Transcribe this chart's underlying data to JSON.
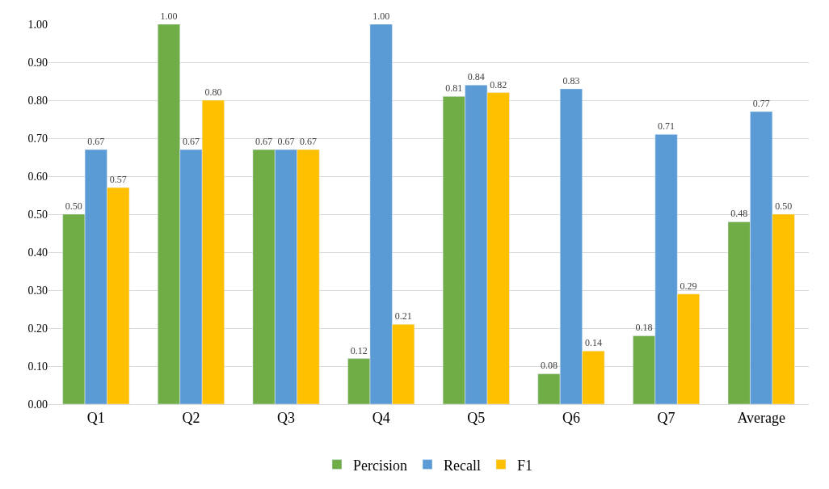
{
  "chart_data": {
    "type": "bar",
    "categories": [
      "Q1",
      "Q2",
      "Q3",
      "Q4",
      "Q5",
      "Q6",
      "Q7",
      "Average"
    ],
    "series": [
      {
        "name": "Percision",
        "color": "#70ad47",
        "values": [
          0.5,
          1.0,
          0.67,
          0.12,
          0.81,
          0.08,
          0.18,
          0.48
        ],
        "value_labels": [
          "0.50",
          "1.00",
          "0.67",
          "0.12",
          "0.81",
          "0.08",
          "0.18",
          "0.48"
        ]
      },
      {
        "name": "Recall",
        "color": "#5b9bd5",
        "values": [
          0.67,
          0.67,
          0.67,
          1.0,
          0.84,
          0.83,
          0.71,
          0.77
        ],
        "value_labels": [
          "0.67",
          "0.67",
          "0.67",
          "1.00",
          "0.84",
          "0.83",
          "0.71",
          "0.77"
        ]
      },
      {
        "name": "F1",
        "color": "#ffc000",
        "values": [
          0.57,
          0.8,
          0.67,
          0.21,
          0.82,
          0.14,
          0.29,
          0.5
        ],
        "value_labels": [
          "0.57",
          "0.80",
          "0.67",
          "0.21",
          "0.82",
          "0.14",
          "0.29",
          "0.50"
        ]
      }
    ],
    "ylim": [
      0,
      1.0
    ],
    "yticks": [
      {
        "value": 0,
        "label": "0.00"
      },
      {
        "value": 0.1,
        "label": "0.10"
      },
      {
        "value": 0.2,
        "label": "0.20"
      },
      {
        "value": 0.3,
        "label": "0.30"
      },
      {
        "value": 0.4,
        "label": "0.40"
      },
      {
        "value": 0.5,
        "label": "0.50"
      },
      {
        "value": 0.6,
        "label": "0.60"
      },
      {
        "value": 0.7,
        "label": "0.70"
      },
      {
        "value": 0.8,
        "label": "0.80"
      },
      {
        "value": 0.9,
        "label": "0.90"
      },
      {
        "value": 1.0,
        "label": "1.00"
      }
    ],
    "grid": "y",
    "legend": "bottom"
  }
}
